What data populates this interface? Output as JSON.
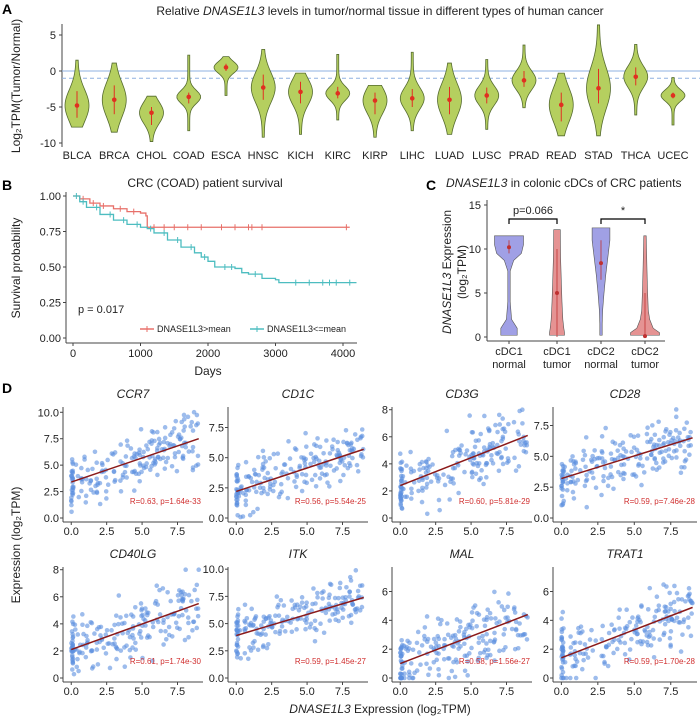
{
  "chart_data": [
    {
      "panel": "A",
      "panel_label": "A",
      "type": "violin",
      "title_pre": "Relative ",
      "title_gene": "DNASE1L3",
      "title_post": " levels in tumor/normal tissue in different types of human cancer",
      "ylabel": "Log₂TPM(Tumor/Normal)",
      "ylim": [
        -10,
        7
      ],
      "yticks": [
        "5",
        "0",
        "-5",
        "-10"
      ],
      "ytick_values": [
        5,
        0,
        -5,
        -10
      ],
      "reference_lines": [
        {
          "value": 0,
          "style": "solid",
          "color": "#8fb0e0"
        },
        {
          "value": -1,
          "style": "dashed",
          "color": "#8fb0e0"
        }
      ],
      "fill_color": "#b5cf5f",
      "median_color": "#e03020",
      "categories": [
        "BLCA",
        "BRCA",
        "CHOL",
        "COAD",
        "ESCA",
        "HNSC",
        "KICH",
        "KIRC",
        "KIRP",
        "LIHC",
        "LUAD",
        "LUSC",
        "PRAD",
        "READ",
        "STAD",
        "THCA",
        "UCEC"
      ],
      "max": [
        1.5,
        1.1,
        -3.5,
        2.2,
        2.0,
        3.0,
        -0.3,
        2.3,
        -2.0,
        2.6,
        1.1,
        1.6,
        3.6,
        -0.3,
        6.4,
        3.7,
        -0.9
      ],
      "min": [
        -7.8,
        -8.5,
        -9.8,
        -8.3,
        -3.4,
        -9.2,
        -8.8,
        -6.8,
        -9.2,
        -8.3,
        -8.8,
        -8.1,
        -5.1,
        -9.0,
        -9.0,
        -6.1,
        -7.5
      ],
      "median": [
        -4.8,
        -4.0,
        -5.8,
        -3.6,
        0.5,
        -2.3,
        -2.9,
        -3.1,
        -4.1,
        -3.8,
        -4.0,
        -3.4,
        -1.3,
        -4.7,
        -2.4,
        -0.8,
        -3.4
      ],
      "q_high": [
        -2.8,
        -2.0,
        -5.0,
        -3.0,
        1.0,
        -0.5,
        -1.5,
        -2.2,
        -3.0,
        -2.5,
        -2.2,
        -2.3,
        0.0,
        -3.0,
        0.3,
        0.5,
        -3.0
      ],
      "q_low": [
        -6.5,
        -6.0,
        -7.5,
        -4.5,
        0.0,
        -4.0,
        -4.5,
        -3.8,
        -6.0,
        -5.0,
        -6.0,
        -4.5,
        -2.2,
        -7.0,
        -4.5,
        -2.0,
        -3.8
      ]
    },
    {
      "panel": "B",
      "panel_label": "B",
      "type": "line",
      "title": "CRC (COAD) patient survival",
      "xlabel": "Days",
      "ylabel": "Survival probability",
      "xlim": [
        0,
        4200
      ],
      "ylim": [
        0,
        1
      ],
      "xticks": [
        "0",
        "1000",
        "2000",
        "3000",
        "4000"
      ],
      "xtick_values": [
        0,
        1000,
        2000,
        3000,
        4000
      ],
      "yticks": [
        "1.00",
        "0.75",
        "0.50",
        "0.25",
        "0.00"
      ],
      "ytick_values": [
        1,
        0.75,
        0.5,
        0.25,
        0
      ],
      "annotation": "p = 0.017",
      "legend_position": "bottom-right",
      "series": [
        {
          "name": "DNASE1L3>mean",
          "color": "#e8706a",
          "x": [
            0,
            100,
            250,
            400,
            600,
            800,
            1000,
            1080,
            1100,
            1150,
            4100
          ],
          "y": [
            1,
            0.98,
            0.95,
            0.93,
            0.91,
            0.89,
            0.88,
            0.86,
            0.78,
            0.78,
            0.78
          ],
          "censor": [
            150,
            300,
            450,
            700,
            900,
            1200,
            1350,
            1500,
            1700,
            1900,
            2200,
            2400,
            2600,
            2650,
            2800,
            4050
          ]
        },
        {
          "name": "DNASE1L3<=mean",
          "color": "#4dbdc0",
          "x": [
            0,
            100,
            200,
            400,
            600,
            800,
            1000,
            1100,
            1200,
            1400,
            1600,
            1800,
            1900,
            2000,
            2100,
            2400,
            2500,
            2600,
            2800,
            3000,
            3050,
            4200
          ],
          "y": [
            1,
            0.96,
            0.92,
            0.87,
            0.83,
            0.8,
            0.78,
            0.77,
            0.74,
            0.69,
            0.64,
            0.6,
            0.57,
            0.54,
            0.5,
            0.49,
            0.46,
            0.45,
            0.42,
            0.41,
            0.39,
            0.39
          ],
          "censor": [
            50,
            150,
            350,
            550,
            750,
            950,
            1150,
            1350,
            1550,
            1750,
            1950,
            2250,
            2350,
            2700,
            3300,
            3500,
            3700,
            3800,
            3900,
            4100
          ]
        }
      ]
    },
    {
      "panel": "C",
      "panel_label": "C",
      "type": "violin",
      "title_gene": "DNASE1L3",
      "title_post": " in colonic cDCs of CRC patients",
      "ylabel_gene": "DNASE1L3",
      "ylabel_post": " Expression",
      "ylabel_line2": "(log₂TPM)",
      "ylim": [
        0,
        15.5
      ],
      "yticks": [
        "15",
        "10",
        "5",
        "0"
      ],
      "ytick_values": [
        15,
        10,
        5,
        0
      ],
      "categories": [
        [
          "cDC1",
          "normal"
        ],
        [
          "cDC1",
          "tumor"
        ],
        [
          "cDC2",
          "normal"
        ],
        [
          "cDC2",
          "tumor"
        ]
      ],
      "colors": [
        "#8f8fe0",
        "#e08080",
        "#8f8fe0",
        "#e08080"
      ],
      "median": [
        10.2,
        5.0,
        8.4,
        0.1
      ],
      "range_high": [
        11,
        10,
        11,
        5
      ],
      "range_low": [
        9.5,
        0,
        6.5,
        0
      ],
      "density_values": [
        [
          11.5,
          10.5,
          9.5,
          8.7,
          7.5,
          4,
          2,
          1,
          0.2
        ],
        [
          12.2,
          9,
          6,
          4,
          2,
          1,
          0.5,
          0.2
        ],
        [
          12.4,
          11,
          9,
          7,
          5,
          3,
          1.5,
          0.2
        ],
        [
          11.5,
          8,
          5,
          3,
          2,
          1,
          0.5,
          0.2
        ]
      ],
      "density": [
        [
          1,
          1,
          0.85,
          0.3,
          0.05,
          0.05,
          0.15,
          0.55,
          0.55
        ],
        [
          0.2,
          0.22,
          0.28,
          0.32,
          0.38,
          0.45,
          0.5,
          0.5
        ],
        [
          0.6,
          0.6,
          0.45,
          0.3,
          0.18,
          0.08,
          0.05,
          0.05
        ],
        [
          0.05,
          0.1,
          0.15,
          0.2,
          0.3,
          0.55,
          1,
          1
        ]
      ],
      "comparisons": [
        {
          "groups": [
            0,
            1
          ],
          "label": "p=0.066"
        },
        {
          "groups": [
            2,
            3
          ],
          "label": "*"
        }
      ]
    },
    {
      "panel": "D",
      "panel_label": "D",
      "type": "scatter",
      "xlabel_gene": "DNASE1L3",
      "xlabel_post": " Expression (log₂TPM)",
      "ylabel": "Expression (log₂TPM)",
      "xlim": [
        -0.3,
        9.3
      ],
      "xticks": [
        "0.0",
        "2.5",
        "5.0",
        "7.5"
      ],
      "xtick_values": [
        0,
        2.5,
        5,
        7.5
      ],
      "point_color": "#5b8fe0",
      "line_color": "#8b1a1a",
      "subplots": [
        {
          "gene": "CCR7",
          "ylim": [
            0,
            10.5
          ],
          "yticks": [
            "0.0",
            "2.5",
            "5.0",
            "7.5",
            "10.0"
          ],
          "ytick_values": [
            0,
            2.5,
            5,
            7.5,
            10
          ],
          "fit": [
            3.4,
            7.5
          ],
          "stat": "R=0.63, p=1.64e-33"
        },
        {
          "gene": "CD1C",
          "ylim": [
            0,
            9.2
          ],
          "yticks": [
            "0.0",
            "2.5",
            "5.0",
            "7.5"
          ],
          "ytick_values": [
            0,
            2.5,
            5,
            7.5
          ],
          "fit": [
            2.2,
            5.7
          ],
          "stat": "R=0.56, p=5.54e-25"
        },
        {
          "gene": "CD3G",
          "ylim": [
            0,
            8.2
          ],
          "yticks": [
            "0",
            "2",
            "4",
            "6",
            "8"
          ],
          "ytick_values": [
            0,
            2,
            4,
            6,
            8
          ],
          "fit": [
            2.4,
            6.1
          ],
          "stat": "R=0.60, p=5.81e-29"
        },
        {
          "gene": "CD28",
          "ylim": [
            0,
            9
          ],
          "yticks": [
            "0.0",
            "2.5",
            "5.0",
            "7.5"
          ],
          "ytick_values": [
            0,
            2.5,
            5,
            7.5
          ],
          "fit": [
            3.2,
            6.5
          ],
          "stat": "R=0.59, p=7.46e-28"
        },
        {
          "gene": "CD40LG",
          "ylim": [
            0,
            8.2
          ],
          "yticks": [
            "0",
            "2",
            "4",
            "6",
            "8"
          ],
          "ytick_values": [
            0,
            2,
            4,
            6,
            8
          ],
          "fit": [
            2.1,
            5.5
          ],
          "stat": "R=0.61, p=1.74e-30"
        },
        {
          "gene": "ITK",
          "ylim": [
            0,
            10.2
          ],
          "yticks": [
            "0.0",
            "2.5",
            "5.0",
            "7.5",
            "10.0"
          ],
          "ytick_values": [
            0,
            2.5,
            5,
            7.5,
            10
          ],
          "fit": [
            3.9,
            7.4
          ],
          "stat": "R=0.59, p=1.45e-27"
        },
        {
          "gene": "MAL",
          "ylim": [
            0,
            7.7
          ],
          "yticks": [
            "0",
            "2",
            "4",
            "6"
          ],
          "ytick_values": [
            0,
            2,
            4,
            6
          ],
          "fit": [
            1.0,
            4.4
          ],
          "stat": "R=0.58, p=1.56e-27"
        },
        {
          "gene": "TRAT1",
          "ylim": [
            0,
            7.7
          ],
          "yticks": [
            "0",
            "2",
            "4",
            "6"
          ],
          "ytick_values": [
            0,
            2,
            4,
            6
          ],
          "fit": [
            1.4,
            4.9
          ],
          "stat": "R=0.59, p=1.70e-28"
        }
      ]
    }
  ]
}
